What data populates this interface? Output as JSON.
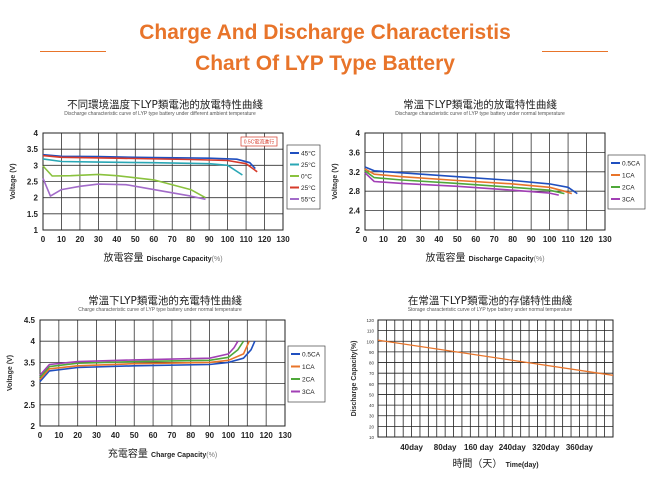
{
  "header": {
    "title_line1": "Charge And Discharge Characteristis",
    "title_line2": "Chart Of LYP Type Battery"
  },
  "chart_data": [
    {
      "type": "line",
      "title": "不同環境溫度下LYP類電池的放電特性曲綫",
      "subtitle": "Discharge characteristic curve of LYP type battery under different ambient temperature",
      "xlabel_cn": "放電容量",
      "xlabel": "Discharge Capacity",
      "xlabel_unit": "(%)",
      "ylabel": "Voltage (V)",
      "xlim": [
        0,
        130
      ],
      "ylim": [
        1,
        4
      ],
      "xticks": [
        0,
        10,
        20,
        30,
        40,
        50,
        60,
        70,
        80,
        90,
        100,
        110,
        120,
        130
      ],
      "yticks": [
        1,
        1.5,
        2,
        2.5,
        3,
        3.5,
        4
      ],
      "annotation": "0.5C電流進行",
      "legend_position": "right",
      "series": [
        {
          "name": "45°C",
          "color": "#1f4fbf",
          "points": [
            [
              0,
              3.33
            ],
            [
              10,
              3.28
            ],
            [
              30,
              3.27
            ],
            [
              60,
              3.24
            ],
            [
              90,
              3.22
            ],
            [
              105,
              3.19
            ],
            [
              112,
              3.08
            ],
            [
              115,
              2.9
            ]
          ]
        },
        {
          "name": "25°C",
          "color": "#2aa7b5",
          "points": [
            [
              0,
              3.2
            ],
            [
              10,
              3.12
            ],
            [
              30,
              3.1
            ],
            [
              60,
              3.08
            ],
            [
              90,
              3.05
            ],
            [
              100,
              3.0
            ],
            [
              108,
              2.7
            ]
          ]
        },
        {
          "name": "0°C",
          "color": "#8ac23e",
          "points": [
            [
              0,
              2.98
            ],
            [
              5,
              2.67
            ],
            [
              15,
              2.68
            ],
            [
              30,
              2.72
            ],
            [
              40,
              2.68
            ],
            [
              60,
              2.55
            ],
            [
              80,
              2.25
            ],
            [
              88,
              2.0
            ]
          ]
        },
        {
          "name": "25°C",
          "color": "#d63a2a",
          "points": [
            [
              0,
              3.3
            ],
            [
              10,
              3.25
            ],
            [
              40,
              3.22
            ],
            [
              80,
              3.18
            ],
            [
              100,
              3.15
            ],
            [
              110,
              3.05
            ],
            [
              116,
              2.8
            ]
          ]
        },
        {
          "name": "55°C",
          "color": "#a26bc9",
          "points": [
            [
              0,
              2.6
            ],
            [
              4,
              2.05
            ],
            [
              10,
              2.25
            ],
            [
              20,
              2.35
            ],
            [
              30,
              2.42
            ],
            [
              45,
              2.4
            ],
            [
              60,
              2.25
            ],
            [
              80,
              2.05
            ],
            [
              88,
              1.95
            ]
          ]
        }
      ]
    },
    {
      "type": "line",
      "title": "常溫下LYP類電池的放電特性曲綫",
      "subtitle": "Discharge characteristic curve of LYP type battery under normal temperature",
      "xlabel_cn": "放電容量",
      "xlabel": "Discharge Capacity",
      "xlabel_unit": "(%)",
      "ylabel": "Voltage (V)",
      "xlim": [
        0,
        130
      ],
      "ylim": [
        2,
        4
      ],
      "xticks": [
        0,
        10,
        20,
        30,
        40,
        50,
        60,
        70,
        80,
        90,
        100,
        110,
        120,
        130
      ],
      "yticks": [
        2,
        2.4,
        2.8,
        3.2,
        3.6,
        4
      ],
      "yticklabels": [
        "2",
        "2.4",
        "2.8",
        "3.2",
        "3.6",
        "4"
      ],
      "legend_position": "right",
      "series": [
        {
          "name": "0.5CA",
          "color": "#1f4fbf",
          "points": [
            [
              0,
              3.3
            ],
            [
              5,
              3.22
            ],
            [
              20,
              3.18
            ],
            [
              50,
              3.1
            ],
            [
              80,
              3.02
            ],
            [
              100,
              2.95
            ],
            [
              110,
              2.88
            ],
            [
              115,
              2.75
            ]
          ]
        },
        {
          "name": "1CA",
          "color": "#e8742a",
          "points": [
            [
              0,
              3.26
            ],
            [
              5,
              3.15
            ],
            [
              20,
              3.1
            ],
            [
              50,
              3.02
            ],
            [
              80,
              2.95
            ],
            [
              100,
              2.88
            ],
            [
              108,
              2.8
            ],
            [
              112,
              2.75
            ]
          ]
        },
        {
          "name": "2CA",
          "color": "#4fa83a",
          "points": [
            [
              0,
              3.22
            ],
            [
              5,
              3.08
            ],
            [
              20,
              3.03
            ],
            [
              50,
              2.96
            ],
            [
              80,
              2.88
            ],
            [
              100,
              2.82
            ],
            [
              108,
              2.75
            ]
          ]
        },
        {
          "name": "3CA",
          "color": "#a23fb5",
          "points": [
            [
              0,
              3.18
            ],
            [
              5,
              3.0
            ],
            [
              20,
              2.96
            ],
            [
              50,
              2.9
            ],
            [
              80,
              2.82
            ],
            [
              100,
              2.76
            ],
            [
              105,
              2.72
            ]
          ]
        }
      ]
    },
    {
      "type": "line",
      "title": "常溫下LYP類電池的充電特性曲綫",
      "subtitle": "Charge characteristic curve of LYP type battery under normal temperature",
      "xlabel_cn": "充電容量",
      "xlabel": "Charge Capacity",
      "xlabel_unit": "(%)",
      "ylabel": "Voltage (V)",
      "xlim": [
        0,
        130
      ],
      "ylim": [
        2,
        4.5
      ],
      "xticks": [
        0,
        10,
        20,
        30,
        40,
        50,
        60,
        70,
        80,
        90,
        100,
        110,
        120,
        130
      ],
      "yticks": [
        2,
        2.5,
        3,
        3.5,
        4,
        4.5
      ],
      "legend_position": "right",
      "series": [
        {
          "name": "0.5CA",
          "color": "#1f4fbf",
          "points": [
            [
              0,
              3.05
            ],
            [
              5,
              3.3
            ],
            [
              20,
              3.38
            ],
            [
              50,
              3.42
            ],
            [
              90,
              3.45
            ],
            [
              100,
              3.5
            ],
            [
              108,
              3.6
            ],
            [
              112,
              3.8
            ],
            [
              114,
              4.0
            ]
          ]
        },
        {
          "name": "1CA",
          "color": "#e8742a",
          "points": [
            [
              0,
              3.1
            ],
            [
              5,
              3.35
            ],
            [
              20,
              3.42
            ],
            [
              50,
              3.47
            ],
            [
              90,
              3.5
            ],
            [
              100,
              3.55
            ],
            [
              108,
              3.7
            ],
            [
              111,
              4.0
            ]
          ]
        },
        {
          "name": "2CA",
          "color": "#4fa83a",
          "points": [
            [
              0,
              3.15
            ],
            [
              5,
              3.4
            ],
            [
              20,
              3.48
            ],
            [
              50,
              3.52
            ],
            [
              90,
              3.55
            ],
            [
              100,
              3.62
            ],
            [
              105,
              3.8
            ],
            [
              108,
              4.0
            ]
          ]
        },
        {
          "name": "3CA",
          "color": "#a23fb5",
          "points": [
            [
              0,
              3.2
            ],
            [
              5,
              3.45
            ],
            [
              20,
              3.52
            ],
            [
              50,
              3.56
            ],
            [
              90,
              3.6
            ],
            [
              100,
              3.7
            ],
            [
              103,
              3.85
            ],
            [
              105,
              4.0
            ]
          ]
        }
      ]
    },
    {
      "type": "line",
      "title": "在常溫下LYP類電池的存儲特性曲綫",
      "subtitle": "Storage characteristic curve of LYP type battery under normal temperature",
      "xlabel_cn": "時間（天）",
      "xlabel": "Time(day)",
      "ylabel": "Discharge Capacity(%)",
      "xlim": [
        0,
        7
      ],
      "ylim": [
        10,
        120
      ],
      "yticks": [
        10,
        20,
        30,
        40,
        50,
        60,
        70,
        80,
        90,
        100,
        110,
        120
      ],
      "xticks": [
        1,
        2,
        3,
        4,
        5,
        6
      ],
      "xticklabels": [
        "40day",
        "80day",
        "160 day",
        "240day",
        "320day",
        "360day"
      ],
      "series": [
        {
          "name": "",
          "color": "#e8742a",
          "points": [
            [
              0,
              101
            ],
            [
              7,
              68
            ]
          ]
        }
      ]
    }
  ]
}
